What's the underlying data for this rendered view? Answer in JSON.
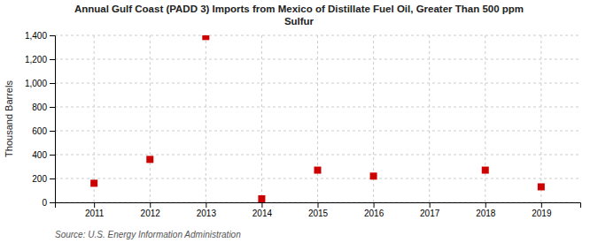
{
  "chart_data": {
    "type": "scatter",
    "title": "Annual Gulf Coast (PADD 3) Imports from Mexico of Distillate Fuel Oil, Greater Than 500 ppm\nSulfur",
    "y_label": "Thousand Barrels",
    "source": "Source: U.S. Energy Information Administration",
    "x": [
      2011,
      2012,
      2013,
      2014,
      2015,
      2016,
      2018,
      2019
    ],
    "values": [
      160,
      360,
      1390,
      30,
      270,
      220,
      270,
      130
    ],
    "color": "#cc0000",
    "marker": "square",
    "xlim": [
      2010.3,
      2019.7
    ],
    "xticks": [
      2011,
      2012,
      2013,
      2014,
      2015,
      2016,
      2017,
      2018,
      2019
    ],
    "ylim": [
      0,
      1400
    ],
    "yticks": [
      0,
      200,
      400,
      600,
      800,
      {
        "value": 1000,
        "label": "1,000"
      },
      {
        "value": 1200,
        "label": "1,200"
      },
      {
        "value": 1400,
        "label": "1,400"
      }
    ],
    "grid": true
  }
}
